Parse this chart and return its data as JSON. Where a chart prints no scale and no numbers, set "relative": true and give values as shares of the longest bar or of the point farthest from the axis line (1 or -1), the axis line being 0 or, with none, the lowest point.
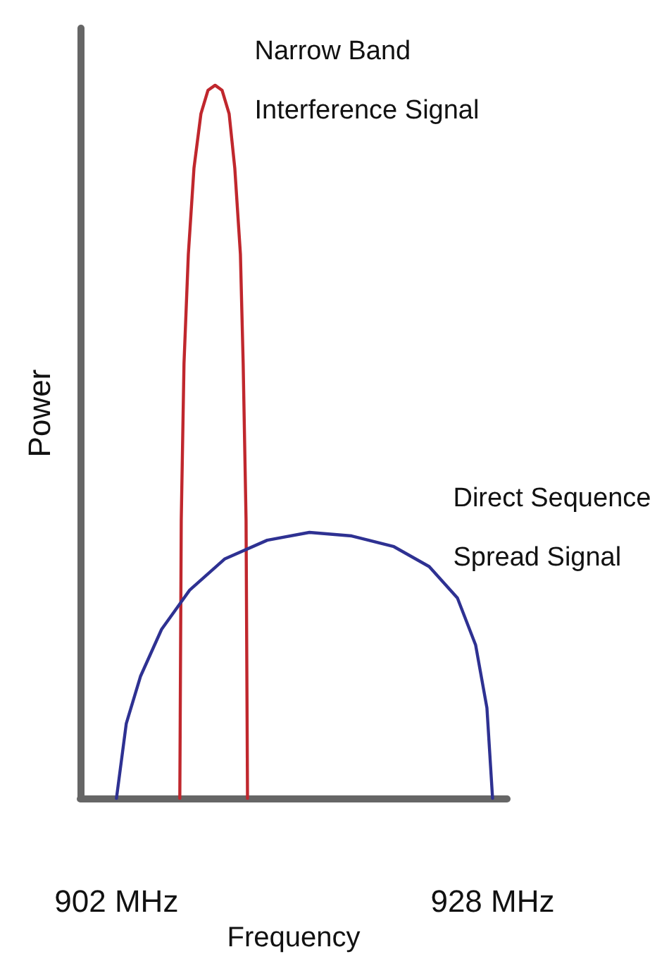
{
  "chart_data": {
    "type": "line",
    "relative": true,
    "xlabel": "Frequency",
    "ylabel": "Power",
    "xlim": [
      899.5,
      929
    ],
    "xticks": [
      {
        "value": 902,
        "label": "902 MHz"
      },
      {
        "value": 928,
        "label": "928 MHz"
      }
    ],
    "marker": "none",
    "line_style": "solid",
    "series": [
      {
        "name": "Narrow Band Interference Signal",
        "color": "#c0272d",
        "x": [
          906.38,
          906.48,
          906.67,
          906.97,
          907.36,
          907.84,
          908.33,
          908.82,
          909.3,
          909.79,
          910.18,
          910.57,
          910.76,
          910.96,
          911.06
        ],
        "values": [
          0,
          0.39,
          0.61,
          0.763,
          0.884,
          0.96,
          0.993,
          1,
          0.993,
          0.96,
          0.884,
          0.763,
          0.61,
          0.39,
          0
        ]
      },
      {
        "name": "Direct Sequence Spread Signal",
        "color": "#2e3192",
        "x": [
          902,
          902.68,
          903.66,
          905.12,
          907.06,
          909.5,
          912.42,
          915.34,
          918.26,
          921.18,
          923.62,
          925.57,
          926.83,
          927.61,
          928
        ],
        "values": [
          0,
          0.105,
          0.171,
          0.237,
          0.292,
          0.336,
          0.362,
          0.373,
          0.368,
          0.353,
          0.325,
          0.281,
          0.215,
          0.127,
          0
        ]
      }
    ]
  }
}
